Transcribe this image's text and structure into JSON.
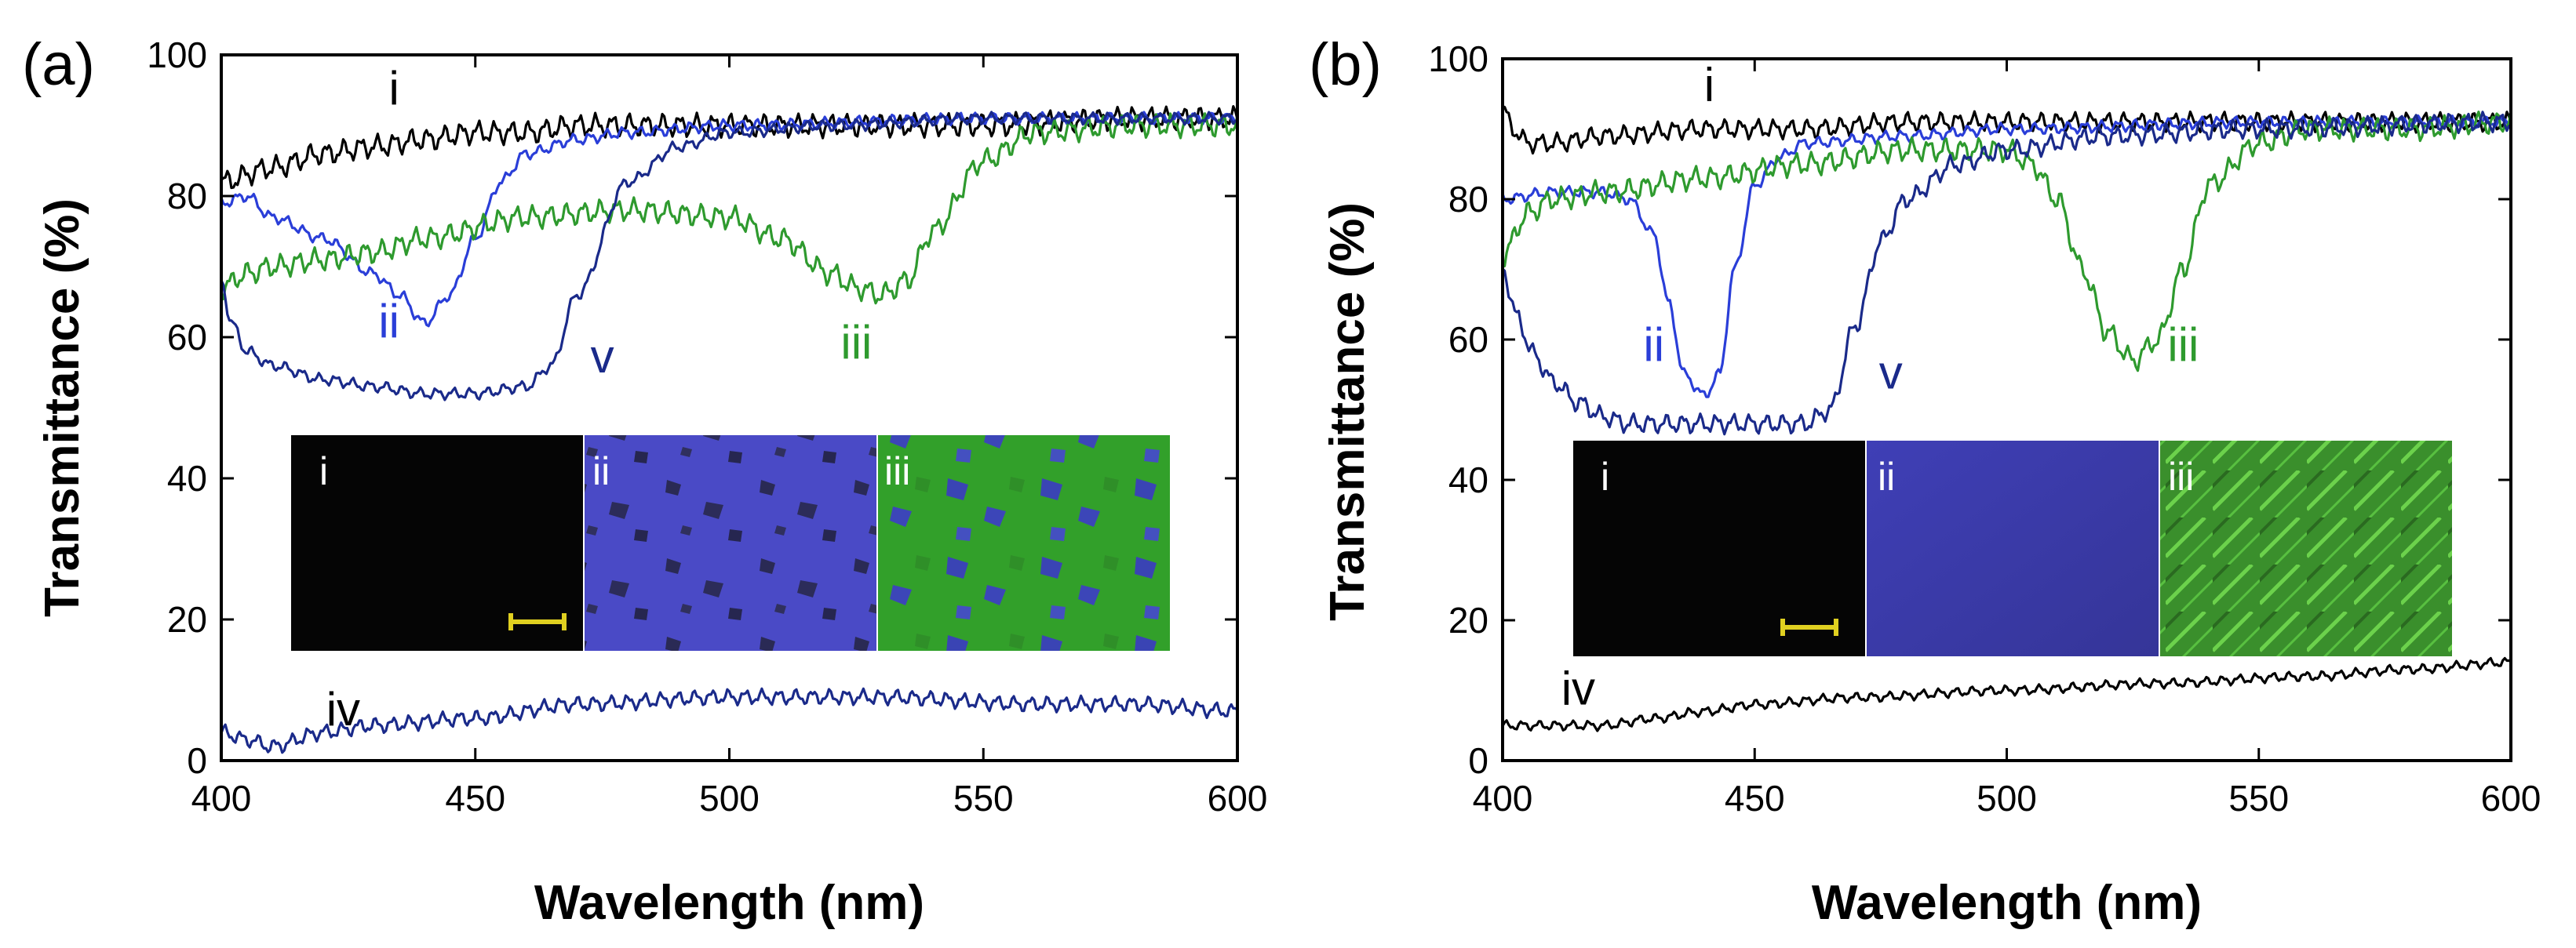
{
  "chart_data": [
    {
      "type": "line",
      "panel_label": "(a)",
      "xlabel": "Wavelength (nm)",
      "ylabel": "Transmittance (%)",
      "xlim": [
        400,
        600
      ],
      "ylim": [
        0,
        100
      ],
      "xticks": [
        400,
        450,
        500,
        550,
        600
      ],
      "yticks": [
        0,
        20,
        40,
        60,
        80,
        100
      ],
      "series": [
        {
          "name": "i",
          "color": "#000000",
          "x": [
            400,
            410,
            420,
            430,
            440,
            450,
            460,
            470,
            480,
            500,
            520,
            550,
            580,
            600
          ],
          "y": [
            82,
            84,
            86,
            87,
            88,
            89,
            89,
            90,
            90,
            90,
            90,
            90,
            91,
            91
          ],
          "jitter": 1.2
        },
        {
          "name": "ii",
          "color": "#2a3ed8",
          "x": [
            400,
            405,
            410,
            420,
            430,
            435,
            440,
            445,
            450,
            455,
            460,
            470,
            480,
            500,
            550,
            600
          ],
          "y": [
            79,
            80,
            77,
            74,
            69,
            66,
            62,
            66,
            74,
            82,
            86,
            88,
            89,
            90,
            91,
            91
          ],
          "jitter": 0.6
        },
        {
          "name": "iii",
          "color": "#2e9a2e",
          "x": [
            400,
            405,
            410,
            420,
            430,
            440,
            460,
            480,
            500,
            510,
            520,
            525,
            530,
            535,
            540,
            550,
            560,
            580,
            600
          ],
          "y": [
            67,
            69,
            70,
            71,
            72,
            74,
            77,
            78,
            77,
            74,
            69,
            67,
            66,
            68,
            75,
            85,
            89,
            90,
            90
          ],
          "jitter": 1.2
        },
        {
          "name": "iv",
          "color": "#1a2a8a",
          "x": [
            400,
            405,
            410,
            420,
            430,
            450,
            470,
            500,
            530,
            560,
            580,
            600
          ],
          "y": [
            4,
            3,
            2,
            4,
            5,
            6,
            8,
            9,
            9,
            8,
            8,
            7
          ],
          "jitter": 0.8
        },
        {
          "name": "v",
          "color": "#1a2a8a",
          "x": [
            400,
            402,
            405,
            410,
            420,
            430,
            440,
            450,
            460,
            465,
            470,
            480,
            490,
            500,
            520,
            550,
            600
          ],
          "y": [
            68,
            62,
            58,
            56,
            54,
            53,
            52,
            52,
            53,
            56,
            66,
            82,
            87,
            89,
            90,
            91,
            91
          ],
          "jitter": 0.6
        }
      ],
      "annotations": [
        {
          "text": "i",
          "x": 434,
          "y": 93,
          "color": "#000000"
        },
        {
          "text": "ii",
          "x": 433,
          "y": 60,
          "color": "#2a3ed8"
        },
        {
          "text": "iii",
          "x": 525,
          "y": 57,
          "color": "#2e9a2e"
        },
        {
          "text": "iv",
          "x": 424,
          "y": 5,
          "color": "#000000"
        },
        {
          "text": "v",
          "x": 475,
          "y": 55,
          "color": "#1a2a8a"
        }
      ],
      "inset": {
        "labels": [
          "i",
          "ii",
          "iii"
        ],
        "scale_bar": true
      }
    },
    {
      "type": "line",
      "panel_label": "(b)",
      "xlabel": "Wavelength (nm)",
      "ylabel": "Transmittance (%)",
      "xlim": [
        400,
        600
      ],
      "ylim": [
        0,
        100
      ],
      "xticks": [
        400,
        450,
        500,
        550,
        600
      ],
      "yticks": [
        0,
        20,
        40,
        60,
        80,
        100
      ],
      "series": [
        {
          "name": "i",
          "color": "#000000",
          "x": [
            400,
            402,
            405,
            410,
            420,
            440,
            460,
            480,
            500,
            520,
            550,
            600
          ],
          "y": [
            93,
            90,
            88,
            88,
            89,
            90,
            90,
            91,
            91,
            91,
            91,
            91
          ],
          "jitter": 1.0
        },
        {
          "name": "ii",
          "color": "#2a3ed8",
          "x": [
            400,
            410,
            420,
            425,
            430,
            433,
            436,
            440,
            443,
            446,
            450,
            455,
            460,
            480,
            500,
            550,
            600
          ],
          "y": [
            80,
            81,
            81,
            80,
            75,
            65,
            55,
            52,
            55,
            70,
            82,
            86,
            88,
            89,
            90,
            91,
            91
          ],
          "jitter": 0.6
        },
        {
          "name": "iii",
          "color": "#2e9a2e",
          "x": [
            400,
            405,
            410,
            420,
            440,
            460,
            480,
            500,
            505,
            510,
            515,
            520,
            525,
            530,
            535,
            540,
            550,
            560,
            580,
            600
          ],
          "y": [
            72,
            78,
            80,
            81,
            83,
            85,
            87,
            87,
            85,
            80,
            70,
            61,
            57,
            60,
            70,
            82,
            88,
            90,
            90,
            91
          ],
          "jitter": 1.2
        },
        {
          "name": "iv",
          "color": "#000000",
          "x": [
            400,
            410,
            420,
            430,
            440,
            450,
            470,
            500,
            530,
            560,
            580,
            600
          ],
          "y": [
            5,
            5,
            5,
            6,
            7,
            8,
            9,
            10,
            11,
            12,
            13,
            14
          ],
          "jitter": 0.5
        },
        {
          "name": "v",
          "color": "#1a2a8a",
          "x": [
            400,
            403,
            406,
            410,
            415,
            420,
            425,
            430,
            440,
            450,
            460,
            465,
            470,
            475,
            480,
            490,
            500,
            520,
            550,
            600
          ],
          "y": [
            70,
            63,
            58,
            54,
            51,
            49,
            48,
            48,
            48,
            48,
            48,
            50,
            62,
            74,
            80,
            85,
            87,
            89,
            90,
            91
          ],
          "jitter": 1.0
        }
      ],
      "annotations": [
        {
          "text": "i",
          "x": 441,
          "y": 94,
          "color": "#000000"
        },
        {
          "text": "ii",
          "x": 430,
          "y": 57,
          "color": "#2a3ed8"
        },
        {
          "text": "iii",
          "x": 535,
          "y": 57,
          "color": "#2e9a2e"
        },
        {
          "text": "iv",
          "x": 415,
          "y": 8,
          "color": "#000000"
        },
        {
          "text": "v",
          "x": 477,
          "y": 53,
          "color": "#1a2a8a"
        }
      ],
      "inset": {
        "labels": [
          "i",
          "ii",
          "iii"
        ],
        "scale_bar": true
      }
    }
  ]
}
